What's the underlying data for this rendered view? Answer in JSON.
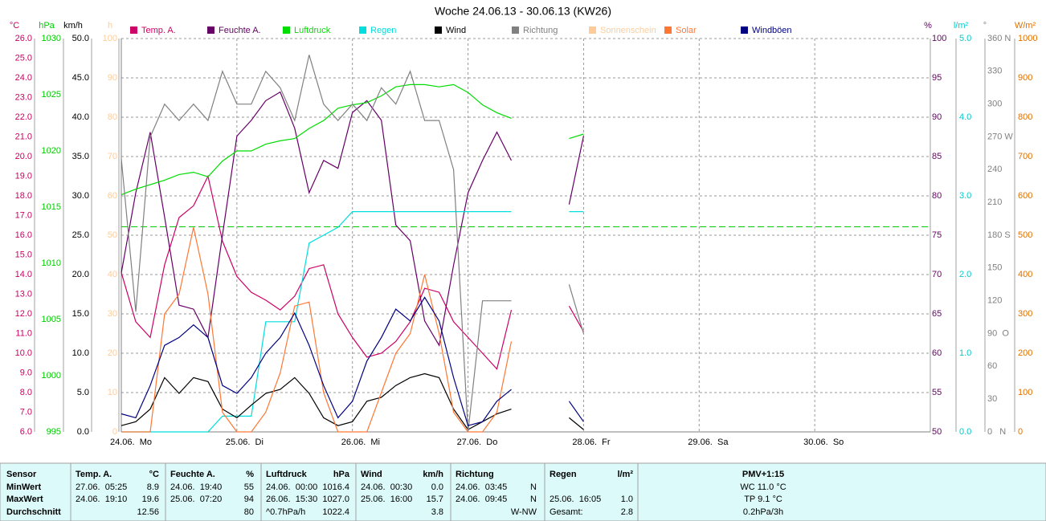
{
  "chart_data": {
    "type": "line",
    "title": "Woche 24.06.13 - 30.06.13 (KW26)",
    "x": [
      0,
      0.125,
      0.25,
      0.375,
      0.5,
      0.625,
      0.75,
      0.875,
      1,
      1.125,
      1.25,
      1.375,
      1.5,
      1.625,
      1.75,
      1.875,
      2,
      2.125,
      2.25,
      2.375,
      2.5,
      2.625,
      2.75,
      2.875,
      3,
      3.125,
      3.25,
      3.375,
      3.5,
      3.625,
      3.75,
      3.875,
      4
    ],
    "xlim": [
      0,
      7
    ],
    "xticks": [
      {
        "value": 0,
        "label": "24.06.  Mo"
      },
      {
        "value": 1,
        "label": "25.06.  Di"
      },
      {
        "value": 2,
        "label": "26.06.  Mi"
      },
      {
        "value": 3,
        "label": "27.06.  Do"
      },
      {
        "value": 4,
        "label": "28.06.  Fr"
      },
      {
        "value": 5,
        "label": "29.06.  Sa"
      },
      {
        "value": 6,
        "label": "30.06.  So"
      }
    ],
    "grid": true,
    "axes": [
      {
        "unit": "°C",
        "side": "left",
        "color": "#cc0066",
        "lim": [
          6,
          26
        ],
        "ticks": [
          {
            "value": 6,
            "label": "6.0"
          },
          {
            "value": 7,
            "label": "7.0"
          },
          {
            "value": 8,
            "label": "8.0"
          },
          {
            "value": 9,
            "label": "9.0"
          },
          {
            "value": 10,
            "label": "10.0"
          },
          {
            "value": 11,
            "label": "11.0"
          },
          {
            "value": 12,
            "label": "12.0"
          },
          {
            "value": 13,
            "label": "13.0"
          },
          {
            "value": 14,
            "label": "14.0"
          },
          {
            "value": 15,
            "label": "15.0"
          },
          {
            "value": 16,
            "label": "16.0"
          },
          {
            "value": 17,
            "label": "17.0"
          },
          {
            "value": 18,
            "label": "18.0"
          },
          {
            "value": 19,
            "label": "19.0"
          },
          {
            "value": 20,
            "label": "20.0"
          },
          {
            "value": 21,
            "label": "21.0"
          },
          {
            "value": 22,
            "label": "22.0"
          },
          {
            "value": 23,
            "label": "23.0"
          },
          {
            "value": 24,
            "label": "24.0"
          },
          {
            "value": 25,
            "label": "25.0"
          },
          {
            "value": 26,
            "label": "26.0"
          }
        ]
      },
      {
        "unit": "hPa",
        "side": "left",
        "color": "#00cc00",
        "lim": [
          995,
          1030
        ],
        "ticks": [
          995,
          1000,
          1005,
          1010,
          1015,
          1020,
          1025,
          1030
        ]
      },
      {
        "unit": "km/h",
        "side": "left",
        "color": "#000000",
        "lim": [
          0,
          50
        ],
        "ticks": [
          {
            "value": 0,
            "label": "0.0"
          },
          {
            "value": 5,
            "label": "5.0"
          },
          {
            "value": 10,
            "label": "10.0"
          },
          {
            "value": 15,
            "label": "15.0"
          },
          {
            "value": 20,
            "label": "20.0"
          },
          {
            "value": 25,
            "label": "25.0"
          },
          {
            "value": 30,
            "label": "30.0"
          },
          {
            "value": 35,
            "label": "35.0"
          },
          {
            "value": 40,
            "label": "40.0"
          },
          {
            "value": 45,
            "label": "45.0"
          },
          {
            "value": 50,
            "label": "50.0"
          }
        ]
      },
      {
        "unit": "h",
        "side": "left",
        "color": "#ffcc99",
        "lim": [
          0,
          100
        ],
        "ticks": [
          0,
          10,
          20,
          30,
          40,
          50,
          60,
          70,
          80,
          90,
          100
        ]
      },
      {
        "unit": "%",
        "side": "right",
        "color": "#660066",
        "lim": [
          50,
          100
        ],
        "ticks": [
          50,
          55,
          60,
          65,
          70,
          75,
          80,
          85,
          90,
          95,
          100
        ]
      },
      {
        "unit": "l/m²",
        "side": "right",
        "color": "#00cccc",
        "lim": [
          0,
          5
        ],
        "ticks": [
          {
            "value": 0,
            "label": "0.0"
          },
          {
            "value": 1,
            "label": "1.0"
          },
          {
            "value": 2,
            "label": "2.0"
          },
          {
            "value": 3,
            "label": "3.0"
          },
          {
            "value": 4,
            "label": "4.0"
          },
          {
            "value": 5,
            "label": "5.0"
          }
        ]
      },
      {
        "unit": "°",
        "side": "right",
        "color": "#808080",
        "lim": [
          0,
          360
        ],
        "ticks": [
          {
            "value": 0,
            "label": "0   N"
          },
          30,
          60,
          {
            "value": 90,
            "label": "90  O"
          },
          120,
          150,
          {
            "value": 180,
            "label": "180 S"
          },
          210,
          240,
          {
            "value": 270,
            "label": "270 W"
          },
          300,
          330,
          {
            "value": 360,
            "label": "360 N"
          }
        ]
      },
      {
        "unit": "W/m²",
        "side": "right",
        "color": "#e07000",
        "lim": [
          0,
          1000
        ],
        "ticks": [
          0,
          100,
          200,
          300,
          400,
          500,
          600,
          700,
          800,
          900,
          1000
        ]
      }
    ],
    "reference_line": {
      "axis": 1,
      "value": 1013.25,
      "color": "#00cc00"
    },
    "series": [
      {
        "name": "Temp. A.",
        "color": "#cc0066",
        "axis": 0,
        "values": [
          14.1,
          11.6,
          10.8,
          14.5,
          16.9,
          17.5,
          19.0,
          15.7,
          13.9,
          13.1,
          12.7,
          12.2,
          12.9,
          14.3,
          14.5,
          12.0,
          10.8,
          9.8,
          10.0,
          10.6,
          11.6,
          13.3,
          13.1,
          11.6,
          10.8,
          10.0,
          9.2,
          12.2,
          null,
          null,
          null,
          12.4,
          11.1
        ]
      },
      {
        "name": "Feuchte A.",
        "color": "#660066",
        "axis": 4,
        "values": [
          70.2,
          80.4,
          88.1,
          77.3,
          66.1,
          65.6,
          62.0,
          75.0,
          87.6,
          89.6,
          92.1,
          93.2,
          88.6,
          80.4,
          84.5,
          83.5,
          90.6,
          92.1,
          89.6,
          76.3,
          74.3,
          64.1,
          61.0,
          71.2,
          80.4,
          84.5,
          88.1,
          84.5,
          null,
          null,
          null,
          78.9,
          87.6
        ]
      },
      {
        "name": "Luftdruck",
        "color": "#00dd00",
        "axis": 1,
        "values": [
          1016.1,
          1016.6,
          1017.0,
          1017.4,
          1017.9,
          1018.1,
          1017.7,
          1019.1,
          1020.0,
          1020.0,
          1020.6,
          1020.9,
          1021.1,
          1022.0,
          1022.7,
          1023.8,
          1024.1,
          1024.3,
          1024.9,
          1025.7,
          1025.9,
          1025.9,
          1025.7,
          1025.9,
          1025.2,
          1024.1,
          1023.4,
          1022.9,
          null,
          null,
          null,
          1021.1,
          1021.5
        ]
      },
      {
        "name": "Regen",
        "color": "#00dddd",
        "axis": 5,
        "values": [
          0,
          0,
          0,
          0,
          0,
          0,
          0,
          0.2,
          0.2,
          0.2,
          1.4,
          1.4,
          1.4,
          2.4,
          2.5,
          2.6,
          2.8,
          2.8,
          2.8,
          2.8,
          2.8,
          2.8,
          2.8,
          2.8,
          2.8,
          2.8,
          2.8,
          2.8,
          null,
          null,
          null,
          2.8,
          2.8
        ]
      },
      {
        "name": "Wind",
        "color": "#000000",
        "axis": 2,
        "values": [
          0.8,
          1.3,
          2.9,
          6.9,
          4.9,
          6.9,
          6.4,
          2.9,
          1.8,
          3.4,
          4.9,
          5.4,
          6.9,
          4.9,
          1.8,
          0.8,
          1.3,
          3.9,
          4.4,
          5.9,
          6.9,
          7.4,
          6.9,
          2.9,
          0.3,
          1.3,
          2.3,
          2.9,
          null,
          null,
          null,
          1.8,
          0.3
        ]
      },
      {
        "name": "Richtung",
        "color": "#808080",
        "axis": 6,
        "values": [
          250,
          110,
          270,
          300,
          285,
          300,
          285,
          330,
          300,
          300,
          330,
          315,
          285,
          345,
          300,
          285,
          300,
          285,
          315,
          300,
          330,
          285,
          285,
          240,
          0,
          120,
          120,
          120,
          null,
          null,
          null,
          135,
          90
        ]
      },
      {
        "name": "Sonnenschein",
        "color": "#ffcc99",
        "axis": 3,
        "values": [
          null,
          null,
          null,
          null,
          null,
          null,
          null,
          null,
          null,
          null,
          null,
          null,
          null,
          null,
          null,
          null,
          null,
          null,
          null,
          null,
          null,
          null,
          null,
          null,
          null,
          null,
          null,
          null,
          null,
          null,
          null,
          null,
          null
        ]
      },
      {
        "name": "Solar",
        "color": "#ff7733",
        "axis": 7,
        "values": [
          0,
          0,
          0,
          300,
          350,
          520,
          350,
          50,
          0,
          0,
          50,
          150,
          320,
          330,
          100,
          0,
          0,
          0,
          100,
          200,
          250,
          400,
          250,
          50,
          0,
          0,
          50,
          230,
          null,
          null,
          null,
          null,
          null
        ]
      },
      {
        "name": "Windböen",
        "color": "#000080",
        "axis": 2,
        "values": [
          2.3,
          1.8,
          5.9,
          11.0,
          12.0,
          13.6,
          12.0,
          5.9,
          4.9,
          6.9,
          10.0,
          12.0,
          15.1,
          11.0,
          5.9,
          1.8,
          3.9,
          9.0,
          12.0,
          15.6,
          14.1,
          17.1,
          14.1,
          6.9,
          0.8,
          1.3,
          3.9,
          5.4,
          null,
          null,
          null,
          3.9,
          1.3
        ]
      }
    ]
  },
  "table": {
    "labels": [
      "Sensor",
      "MinWert",
      "MaxWert",
      "Durchschnitt"
    ],
    "columns": [
      {
        "name": "Temp. A.",
        "unit": "°C",
        "cells": [
          [
            "27.06.  05:25",
            "8.9"
          ],
          [
            "24.06.  19:10",
            "19.6"
          ],
          [
            null,
            "12.56"
          ]
        ]
      },
      {
        "name": "Feuchte A.",
        "unit": "%",
        "cells": [
          [
            "24.06.  19:40",
            "55"
          ],
          [
            "25.06.  07:20",
            "94"
          ],
          [
            null,
            "80"
          ]
        ]
      },
      {
        "name": "Luftdruck",
        "unit": "hPa",
        "cells": [
          [
            "24.06.  00:00",
            "1016.4"
          ],
          [
            "26.06.  15:30",
            "1027.0"
          ],
          [
            "^0.7hPa/h",
            "1022.4"
          ]
        ]
      },
      {
        "name": "Wind",
        "unit": "km/h",
        "cells": [
          [
            "24.06.  00:30",
            "0.0"
          ],
          [
            "25.06.  16:00",
            "15.7"
          ],
          [
            null,
            "3.8"
          ]
        ]
      },
      {
        "name": "Richtung",
        "unit": null,
        "cells": [
          [
            "24.06.  03:45",
            "N"
          ],
          [
            "24.06.  09:45",
            "N"
          ],
          [
            null,
            "W-NW"
          ]
        ]
      },
      {
        "name": "Regen",
        "unit": "l/m²",
        "cells": [
          [
            null,
            null
          ],
          [
            "25.06.  16:05",
            "1.0"
          ],
          [
            "Gesamt:",
            "2.8"
          ]
        ]
      },
      {
        "name": "PMV+1:15",
        "unit": null,
        "cells": [
          [
            "WC 11.0 °C"
          ],
          [
            "TP 9.1 °C"
          ],
          [
            "0.2hPa/3h"
          ]
        ]
      }
    ]
  }
}
